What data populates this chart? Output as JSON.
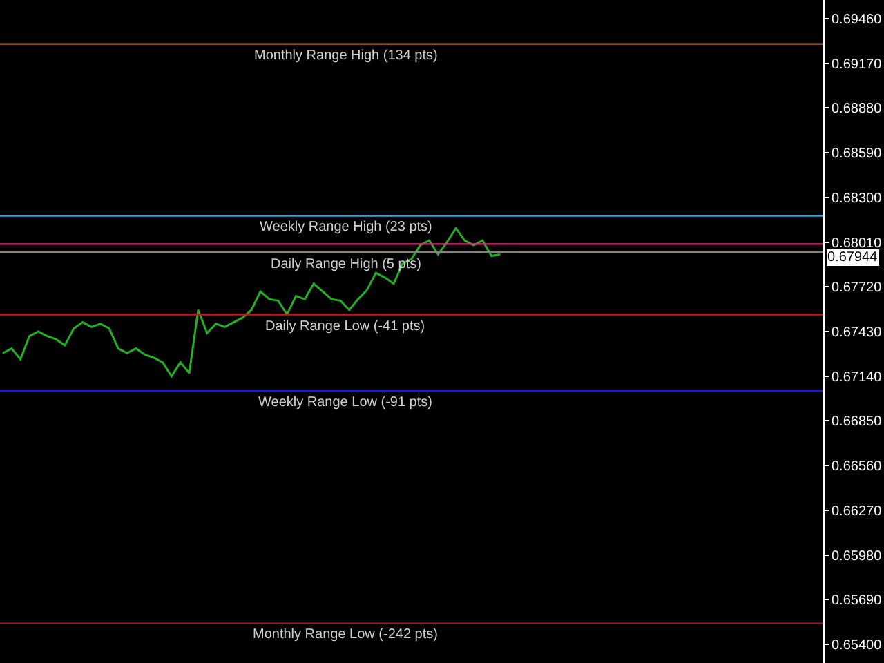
{
  "chart_data": {
    "type": "line",
    "categories": [
      null,
      null,
      null,
      null,
      null,
      null,
      null,
      null,
      null,
      null,
      null,
      null,
      null,
      null,
      null,
      null,
      null,
      null,
      null,
      null,
      null,
      null,
      null,
      null,
      null,
      null,
      null,
      null,
      null,
      null,
      null,
      null,
      null,
      null,
      null,
      null,
      null,
      null,
      null,
      null,
      null,
      null,
      null,
      null,
      null,
      null,
      null,
      null,
      null,
      null,
      null,
      null,
      null,
      null,
      null,
      null,
      null
    ],
    "series": [
      {
        "color": "#22b022",
        "values": [
          0.6729,
          0.6732,
          0.6725,
          0.674,
          0.6743,
          0.674,
          0.6738,
          0.6734,
          0.6745,
          0.6749,
          0.6746,
          0.6748,
          0.6745,
          0.6732,
          0.6729,
          0.6732,
          0.6728,
          0.6726,
          0.6723,
          0.6714,
          0.6723,
          0.6716,
          0.6757,
          0.6742,
          0.6748,
          0.6746,
          0.6749,
          0.6752,
          0.6757,
          0.6769,
          0.6764,
          0.6763,
          0.6754,
          0.6766,
          0.6764,
          0.6774,
          0.6769,
          0.6764,
          0.6763,
          0.6757,
          0.6764,
          0.677,
          0.6781,
          0.6778,
          0.6774,
          0.6787,
          0.679,
          0.6799,
          0.6802,
          0.6793,
          0.6801,
          0.681,
          0.6802,
          0.6799,
          0.6802,
          0.6792,
          0.6793
        ]
      }
    ],
    "ylim": [
      0.6528,
      0.6958
    ],
    "yticks": [
      {
        "value": 0.6946,
        "label": "0.69460"
      },
      {
        "value": 0.6917,
        "label": "0.69170"
      },
      {
        "value": 0.6888,
        "label": "0.68880"
      },
      {
        "value": 0.6859,
        "label": "0.68590"
      },
      {
        "value": 0.683,
        "label": "0.68300"
      },
      {
        "value": 0.6801,
        "label": "0.68010"
      },
      {
        "value": 0.6772,
        "label": "0.67720"
      },
      {
        "value": 0.6743,
        "label": "0.67430"
      },
      {
        "value": 0.6714,
        "label": "0.67140"
      },
      {
        "value": 0.6685,
        "label": "0.66850"
      },
      {
        "value": 0.6656,
        "label": "0.66560"
      },
      {
        "value": 0.6627,
        "label": "0.66270"
      },
      {
        "value": 0.6598,
        "label": "0.65980"
      },
      {
        "value": 0.6569,
        "label": "0.65690"
      },
      {
        "value": 0.654,
        "label": "0.65400"
      }
    ],
    "ref_lines": [
      {
        "axis": "y",
        "value": 0.69295,
        "label": "Monthly Range High (134 pts)",
        "color": "#b0603a"
      },
      {
        "axis": "y",
        "value": 0.6818,
        "label": "Weekly Range High (23 pts)",
        "color": "#3aa0e0"
      },
      {
        "axis": "y",
        "value": 0.67997,
        "label": "Daily Range High (5 pts)",
        "color": "#e0307a"
      },
      {
        "axis": "y",
        "value": 0.67944,
        "label": "0.67944",
        "color": "#808080"
      },
      {
        "axis": "y",
        "value": 0.6754,
        "label": "Daily Range Low (-41 pts)",
        "color": "#c01818"
      },
      {
        "axis": "y",
        "value": 0.67046,
        "label": "Weekly Range Low (-91 pts)",
        "color": "#1818d0"
      },
      {
        "axis": "y",
        "value": 0.65537,
        "label": "Monthly Range Low (-242 pts)",
        "color": "#a01818"
      }
    ],
    "grid": false,
    "tick_labels": "y",
    "marker": "none",
    "line_style": "solid"
  }
}
